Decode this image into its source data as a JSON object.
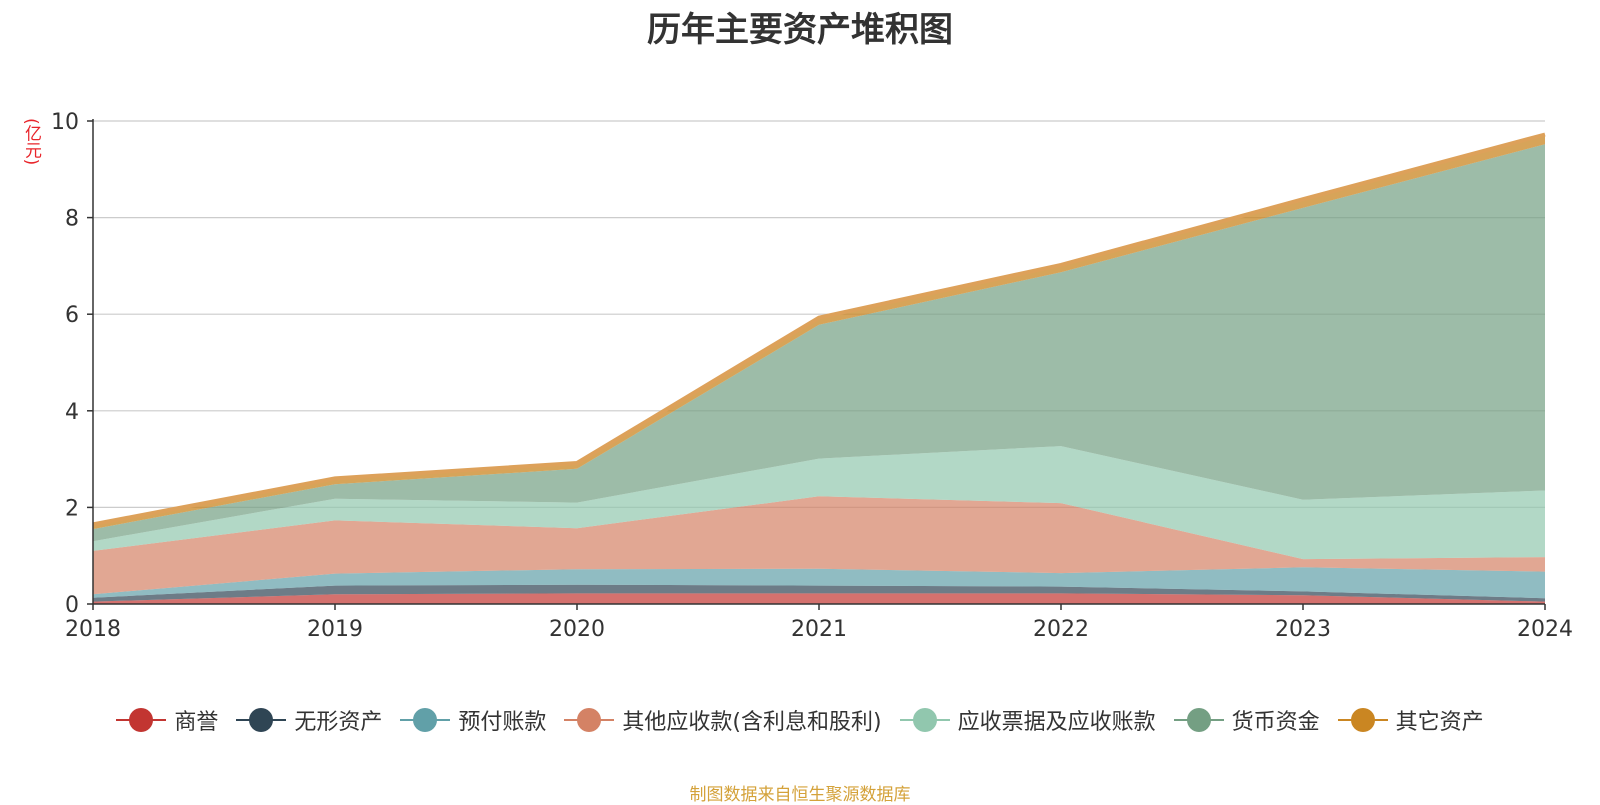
{
  "chart_data": {
    "type": "area",
    "title": "历年主要资产堆积图",
    "unit_label": "(亿元)",
    "source_note": "制图数据来自恒生聚源数据库",
    "x": [
      "2018",
      "2019",
      "2020",
      "2021",
      "2022",
      "2023",
      "2024"
    ],
    "ylim": [
      0,
      10
    ],
    "yticks": [
      0,
      2,
      4,
      6,
      8,
      10
    ],
    "grid": true,
    "stacked": true,
    "legend_position": "bottom",
    "series": [
      {
        "name": "商誉",
        "color": "#c23531",
        "values": [
          0.05,
          0.2,
          0.22,
          0.22,
          0.22,
          0.18,
          0.05
        ]
      },
      {
        "name": "无形资产",
        "color": "#2f4554",
        "values": [
          0.08,
          0.18,
          0.18,
          0.16,
          0.14,
          0.08,
          0.07
        ]
      },
      {
        "name": "预付账款",
        "color": "#61a0a8",
        "values": [
          0.07,
          0.25,
          0.32,
          0.35,
          0.28,
          0.5,
          0.55
        ]
      },
      {
        "name": "其他应收款(含利息和股利)",
        "color": "#d48265",
        "values": [
          0.9,
          1.1,
          0.85,
          1.5,
          1.45,
          0.17,
          0.3
        ]
      },
      {
        "name": "应收票据及应收账款",
        "color": "#91c7ae",
        "values": [
          0.2,
          0.45,
          0.53,
          0.78,
          1.18,
          1.23,
          1.38
        ]
      },
      {
        "name": "货币资金",
        "color": "#749f83",
        "values": [
          0.25,
          0.3,
          0.7,
          2.77,
          3.6,
          6.04,
          7.17
        ]
      },
      {
        "name": "其它资产",
        "color": "#ca8622",
        "values": [
          0.1,
          0.12,
          0.12,
          0.15,
          0.15,
          0.18,
          0.2
        ]
      }
    ]
  }
}
